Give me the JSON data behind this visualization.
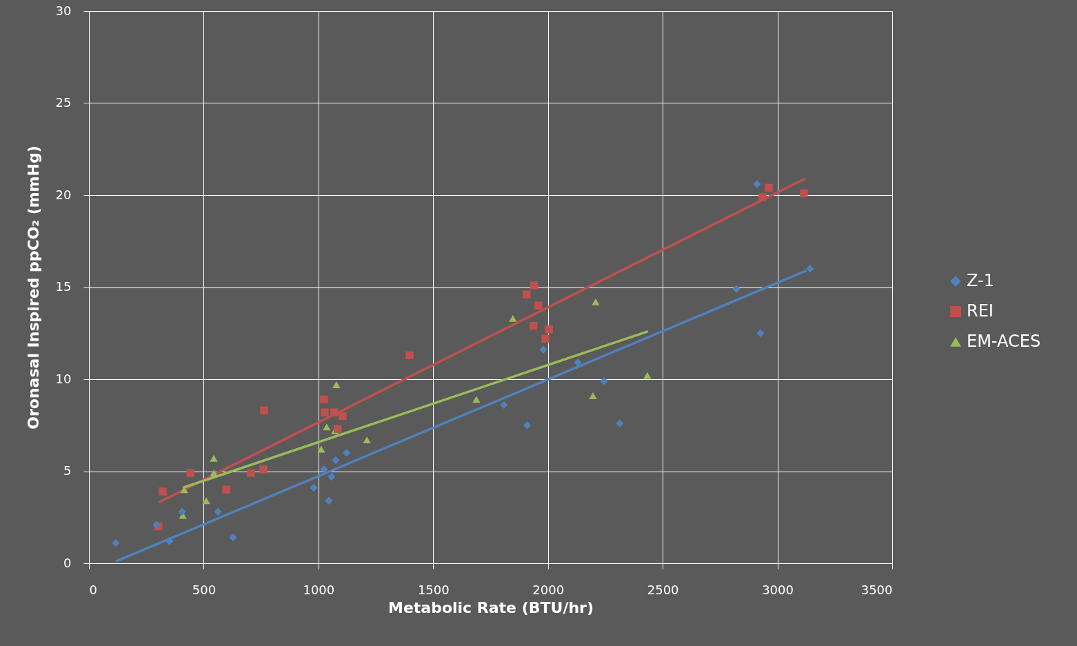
{
  "chart_data": {
    "type": "scatter",
    "xlabel": "Metabolic Rate (BTU/hr)",
    "ylabel": "Oronasal Inspired ppCO₂ (mmHg)",
    "xlim": [
      0,
      3500
    ],
    "ylim": [
      0,
      30
    ],
    "xticks": [
      0,
      500,
      1000,
      1500,
      2000,
      2500,
      3000,
      3500
    ],
    "yticks": [
      0,
      5,
      10,
      15,
      20,
      25,
      30
    ],
    "grid": true,
    "legend": "right",
    "series": [
      {
        "name": "Z-1",
        "color": "#4f81bd",
        "marker": "diamond",
        "x": [
          117,
          294,
          351,
          406,
          562,
          628,
          979,
          1024,
          1045,
          1057,
          1075,
          1123,
          1808,
          1910,
          1980,
          2130,
          2244,
          2313,
          2821,
          2911,
          2926,
          3142
        ],
        "values": [
          1.1,
          2.1,
          1.2,
          2.8,
          2.8,
          1.4,
          4.1,
          5.1,
          3.4,
          4.7,
          5.6,
          6.0,
          8.6,
          7.5,
          11.6,
          10.9,
          9.9,
          7.6,
          14.9,
          20.6,
          12.5,
          16.0
        ]
      },
      {
        "name": "REI",
        "color": "#c0504d",
        "marker": "square",
        "x": [
          303,
          321,
          442,
          598,
          706,
          760,
          763,
          1024,
          1027,
          1069,
          1084,
          1105,
          1397,
          1907,
          1940,
          1937,
          1958,
          1989,
          2004,
          2935,
          2962,
          3115
        ],
        "values": [
          2.0,
          3.9,
          4.9,
          4.0,
          4.9,
          5.1,
          8.3,
          8.9,
          8.2,
          8.2,
          7.3,
          8.0,
          11.3,
          14.6,
          15.1,
          12.9,
          14.0,
          12.2,
          12.7,
          19.9,
          20.4,
          20.1
        ]
      },
      {
        "name": "EM-ACES",
        "color": "#9bbb59",
        "marker": "triangle",
        "x": [
          409,
          415,
          511,
          544,
          544,
          1012,
          1036,
          1072,
          1078,
          1211,
          1688,
          1847,
          2196,
          2208,
          2433
        ],
        "values": [
          2.6,
          4.0,
          3.4,
          5.7,
          4.9,
          6.2,
          7.4,
          7.2,
          9.7,
          6.7,
          8.9,
          13.3,
          9.1,
          14.2,
          10.2
        ]
      },
      {
        "type": "line",
        "color": "#4f81bd",
        "x": [
          117,
          3127
        ],
        "values": [
          0.1,
          15.9
        ]
      },
      {
        "type": "line",
        "color": "#c0504d",
        "x": [
          303,
          3121
        ],
        "values": [
          3.3,
          20.9
        ]
      },
      {
        "type": "line",
        "color": "#9bbb59",
        "x": [
          409,
          2436
        ],
        "values": [
          4.1,
          12.6
        ]
      }
    ]
  }
}
